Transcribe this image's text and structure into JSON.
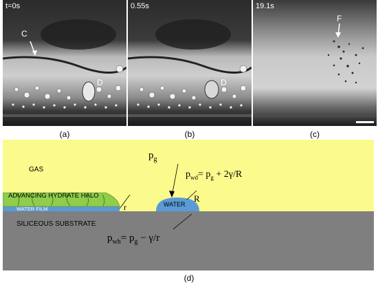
{
  "panels": [
    {
      "time": "t=0s",
      "caption": "(a)",
      "labels": [
        "C",
        "D"
      ]
    },
    {
      "time": "0.55s",
      "caption": "(b)",
      "labels": [
        "D"
      ]
    },
    {
      "time": "19.1s",
      "caption": "(c)",
      "labels": [
        "F"
      ]
    }
  ],
  "schematic": {
    "caption": "(d)",
    "gas_label": "GAS",
    "pg_label": "p",
    "pg_sub": "g",
    "halo_label": "ADVANCING HYDRATE HALO",
    "film_label": "WATER FILM",
    "substrate_label": "SILICEOUS SUBSTRATE",
    "water_label": "WATER",
    "r_label": "r",
    "R_label": "R",
    "pwd_eq": {
      "p": "p",
      "sub": "wd",
      "rhs_p": "= p",
      "rhs_sub": "g",
      "rhs_tail": " + 2γ/R"
    },
    "pwh_eq": {
      "p": "p",
      "sub": "wh",
      "rhs_p": "= p",
      "rhs_sub": "g",
      "rhs_tail": " − γ/r"
    },
    "colors": {
      "gas": "#fbfa8c",
      "substrate": "#7f7f7f",
      "water": "#5a9bd5",
      "halo": "#8fcd4b"
    }
  }
}
